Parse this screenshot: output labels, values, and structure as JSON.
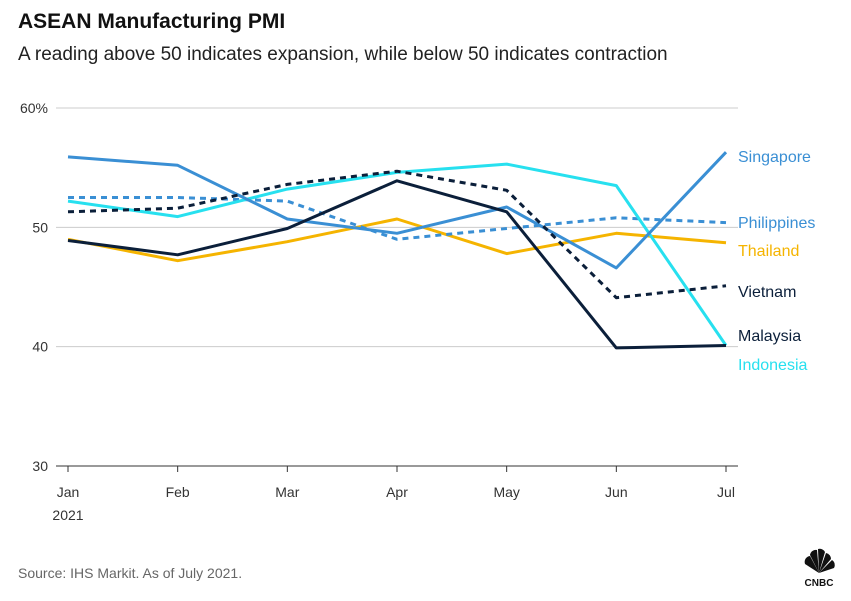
{
  "title": "ASEAN Manufacturing PMI",
  "subtitle": "A reading above 50 indicates expansion, while below 50 indicates contraction",
  "source": "Source: IHS Markit. As of July 2021.",
  "logo": {
    "text": "CNBC"
  },
  "chart_data": {
    "type": "line",
    "title": "ASEAN Manufacturing PMI",
    "subtitle": "A reading above 50 indicates expansion, while below 50 indicates contraction",
    "categories": [
      "Jan",
      "Feb",
      "Mar",
      "Apr",
      "May",
      "Jun",
      "Jul"
    ],
    "x_sublabel": "2021",
    "y_ticks": [
      "60%",
      "50",
      "40",
      "30"
    ],
    "y_tick_values": [
      60,
      50,
      40,
      30
    ],
    "ylim": [
      30,
      60
    ],
    "grid": "horizontal at 40, 50, 60",
    "legend": "direct labels at right end of lines",
    "series": [
      {
        "name": "Singapore",
        "color": "#3a8fd4",
        "style": "solid",
        "values": [
          55.9,
          55.2,
          50.7,
          49.5,
          51.7,
          46.6,
          56.3
        ]
      },
      {
        "name": "Philippines",
        "color": "#3a8fd4",
        "style": "dashed",
        "values": [
          52.5,
          52.5,
          52.2,
          49.0,
          49.9,
          50.8,
          50.4
        ]
      },
      {
        "name": "Thailand",
        "color": "#f5b400",
        "style": "solid",
        "values": [
          49.0,
          47.2,
          48.8,
          50.7,
          47.8,
          49.5,
          48.7
        ]
      },
      {
        "name": "Vietnam",
        "color": "#0b1f3a",
        "style": "dashed",
        "values": [
          51.3,
          51.6,
          53.6,
          54.7,
          53.1,
          44.1,
          45.1
        ]
      },
      {
        "name": "Malaysia",
        "color": "#0b1f3a",
        "style": "solid",
        "values": [
          48.9,
          47.7,
          49.9,
          53.9,
          51.3,
          39.9,
          40.1
        ]
      },
      {
        "name": "Indonesia",
        "color": "#27e0ef",
        "style": "solid",
        "values": [
          52.2,
          50.9,
          53.2,
          54.6,
          55.3,
          53.5,
          40.1
        ]
      }
    ]
  }
}
